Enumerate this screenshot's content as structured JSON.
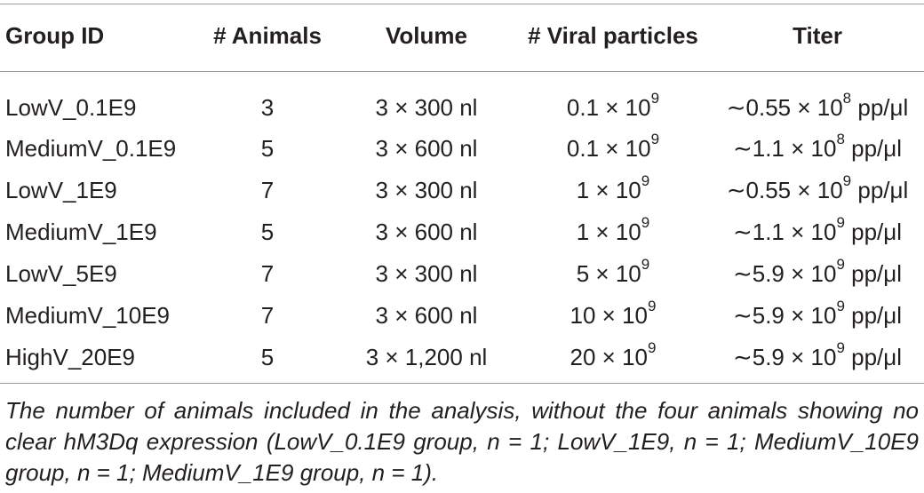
{
  "columns": [
    "Group ID",
    "# Animals",
    "Volume",
    "# Viral particles",
    "Titer"
  ],
  "rows": [
    {
      "group": "LowV_0.1E9",
      "animals": "3",
      "volume": "3 × 300 nl",
      "particles_base": "0.1 × 10",
      "particles_exp": "9",
      "titer_base": "∼0.55 × 10",
      "titer_exp": "8",
      "titer_unit": " pp/μl"
    },
    {
      "group": "MediumV_0.1E9",
      "animals": "5",
      "volume": "3 × 600 nl",
      "particles_base": "0.1 × 10",
      "particles_exp": "9",
      "titer_base": "∼1.1 × 10",
      "titer_exp": "8",
      "titer_unit": " pp/μl"
    },
    {
      "group": "LowV_1E9",
      "animals": "7",
      "volume": "3 × 300 nl",
      "particles_base": "1 × 10",
      "particles_exp": "9",
      "titer_base": "∼0.55 × 10",
      "titer_exp": "9",
      "titer_unit": " pp/μl"
    },
    {
      "group": "MediumV_1E9",
      "animals": "5",
      "volume": "3 × 600 nl",
      "particles_base": "1 × 10",
      "particles_exp": "9",
      "titer_base": "∼1.1 × 10",
      "titer_exp": "9",
      "titer_unit": " pp/μl"
    },
    {
      "group": "LowV_5E9",
      "animals": "7",
      "volume": "3 × 300 nl",
      "particles_base": "5 × 10",
      "particles_exp": "9",
      "titer_base": "∼5.9 × 10",
      "titer_exp": "9",
      "titer_unit": " pp/μl"
    },
    {
      "group": "MediumV_10E9",
      "animals": "7",
      "volume": "3 × 600 nl",
      "particles_base": "10 × 10",
      "particles_exp": "9",
      "titer_base": "∼5.9 × 10",
      "titer_exp": "9",
      "titer_unit": " pp/μl"
    },
    {
      "group": "HighV_20E9",
      "animals": "5",
      "volume": "3 × 1,200 nl",
      "particles_base": "20 × 10",
      "particles_exp": "9",
      "titer_base": "∼5.9 × 10",
      "titer_exp": "9",
      "titer_unit": " pp/μl"
    }
  ],
  "footnote": "The number of animals included in the analysis, without the four animals showing no clear hM3Dq expression (LowV_0.1E9 group, n = 1; LowV_1E9, n = 1; MediumV_10E9 group, n = 1; MediumV_1E9 group, n = 1)."
}
